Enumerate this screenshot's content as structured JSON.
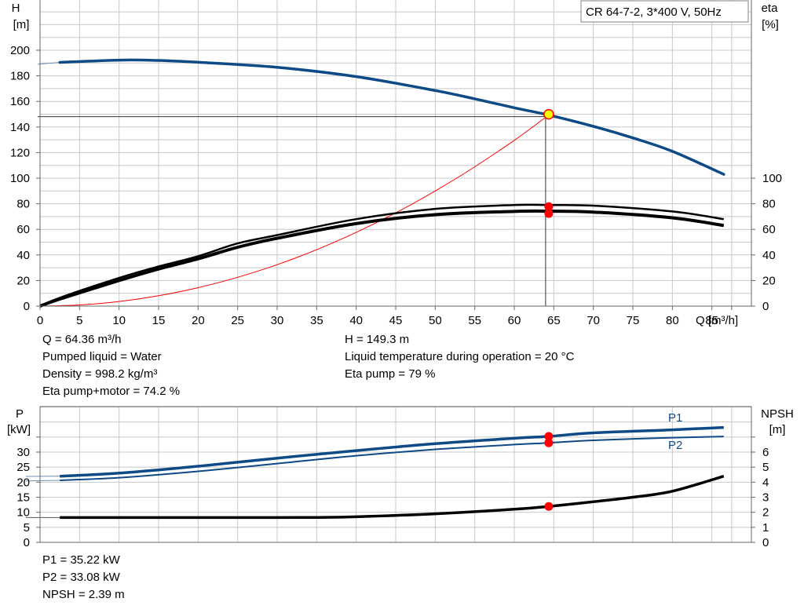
{
  "title_box": "CR 64-7-2, 3*400 V, 50Hz",
  "colors": {
    "blue": "#0d4a86",
    "black": "#000000",
    "red": "#ff0000",
    "duty_point": "#ffff00",
    "grid": "#c8c8c8",
    "frame": "#666666"
  },
  "chart_data": [
    {
      "type": "line",
      "name": "performance",
      "x_axis": {
        "label": "Q [m³/h]",
        "range": [
          0,
          90
        ],
        "ticks": [
          0,
          5,
          10,
          15,
          20,
          25,
          30,
          35,
          40,
          45,
          50,
          55,
          60,
          65,
          70,
          75,
          80,
          85
        ]
      },
      "y_axis_left": {
        "label_1": "H",
        "label_2": "[m]",
        "range": [
          0,
          200
        ],
        "ticks": [
          0,
          20,
          40,
          60,
          80,
          100,
          120,
          140,
          160,
          180,
          200
        ]
      },
      "y_axis_right": {
        "label_1": "eta",
        "label_2": "[%]",
        "ticks": [
          0,
          20,
          40,
          60,
          80,
          100
        ]
      },
      "grid": true,
      "series": [
        {
          "role": "head",
          "color": "#0d4a86",
          "axis": "H",
          "points": [
            [
              0,
              189
            ],
            [
              2.5,
              190.5
            ],
            [
              10,
              192.3
            ],
            [
              15,
              192
            ],
            [
              20,
              190.6
            ],
            [
              30,
              186.6
            ],
            [
              40,
              179.4
            ],
            [
              50,
              168.5
            ],
            [
              55,
              162
            ],
            [
              60,
              155
            ],
            [
              64.36,
              149.3
            ],
            [
              70,
              140.5
            ],
            [
              75,
              131.5
            ],
            [
              80,
              121
            ],
            [
              86.5,
              103
            ]
          ]
        },
        {
          "role": "eta_pump",
          "color": "#000000",
          "axis": "eta",
          "points": [
            [
              0,
              0
            ],
            [
              2.5,
              6.5
            ],
            [
              10,
              22
            ],
            [
              15,
              31
            ],
            [
              20,
              39
            ],
            [
              25,
              49
            ],
            [
              30,
              55.5
            ],
            [
              40,
              68
            ],
            [
              50,
              76
            ],
            [
              60,
              79
            ],
            [
              64.36,
              79
            ],
            [
              70,
              78.5
            ],
            [
              80,
              74
            ],
            [
              86.5,
              68
            ]
          ]
        },
        {
          "role": "eta_pump_motor",
          "color": "#000000",
          "axis": "eta",
          "points": [
            [
              0,
              0
            ],
            [
              2.5,
              5.5
            ],
            [
              10,
              20
            ],
            [
              15,
              29
            ],
            [
              20,
              37
            ],
            [
              25,
              46
            ],
            [
              30,
              53
            ],
            [
              40,
              64.5
            ],
            [
              50,
              71.5
            ],
            [
              60,
              74
            ],
            [
              64.36,
              74.2
            ],
            [
              70,
              73.5
            ],
            [
              80,
              69
            ],
            [
              86.5,
              63
            ]
          ]
        },
        {
          "role": "system_curve",
          "color": "#ff0000",
          "axis": "H",
          "points": [
            [
              0,
              0
            ],
            [
              5,
              0.9
            ],
            [
              10,
              3.6
            ],
            [
              15,
              8.1
            ],
            [
              20,
              14.4
            ],
            [
              25,
              22.5
            ],
            [
              30,
              32.4
            ],
            [
              35,
              44.1
            ],
            [
              40,
              57.6
            ],
            [
              45,
              72.9
            ],
            [
              50,
              90
            ],
            [
              55,
              108.9
            ],
            [
              60,
              129.6
            ],
            [
              64.36,
              149.3
            ]
          ]
        }
      ],
      "duty_point": {
        "q": 64.36,
        "h": 149.3,
        "eta_pump": 79,
        "eta_pump_motor": 74.2
      }
    },
    {
      "type": "line",
      "name": "power_npsh",
      "x_axis": {
        "range": [
          0,
          90
        ]
      },
      "y_axis_left": {
        "label_1": "P",
        "label_2": "[kW]",
        "range": [
          0,
          40
        ],
        "ticks": [
          0,
          5,
          10,
          15,
          20,
          25,
          30
        ]
      },
      "y_axis_right": {
        "label_1": "NPSH",
        "label_2": "[m]",
        "range": [
          0,
          8
        ],
        "ticks": [
          0,
          1,
          2,
          3,
          4,
          5,
          6
        ]
      },
      "grid": true,
      "series": [
        {
          "name": "P1",
          "color": "#0d4a86",
          "axis": "P",
          "points": [
            [
              0,
              22
            ],
            [
              2.5,
              22
            ],
            [
              10,
              23
            ],
            [
              20,
              25.3
            ],
            [
              30,
              28
            ],
            [
              40,
              30.5
            ],
            [
              50,
              32.8
            ],
            [
              60,
              34.6
            ],
            [
              64.36,
              35.22
            ],
            [
              70,
              36.4
            ],
            [
              80,
              37.4
            ],
            [
              86.5,
              38.2
            ]
          ]
        },
        {
          "name": "P2",
          "color": "#0d4a86",
          "axis": "P",
          "points": [
            [
              0,
              20.5
            ],
            [
              2.5,
              20.6
            ],
            [
              10,
              21.5
            ],
            [
              20,
              23.6
            ],
            [
              30,
              26.2
            ],
            [
              40,
              28.8
            ],
            [
              50,
              30.9
            ],
            [
              60,
              32.5
            ],
            [
              64.36,
              33.08
            ],
            [
              70,
              33.9
            ],
            [
              80,
              34.8
            ],
            [
              86.5,
              35.2
            ]
          ]
        },
        {
          "role": "npsh",
          "color": "#000000",
          "axis": "NPSH",
          "points": [
            [
              0,
              1.65
            ],
            [
              2.5,
              1.65
            ],
            [
              10,
              1.65
            ],
            [
              20,
              1.65
            ],
            [
              30,
              1.65
            ],
            [
              35,
              1.66
            ],
            [
              40,
              1.7
            ],
            [
              50,
              1.9
            ],
            [
              60,
              2.2
            ],
            [
              64.36,
              2.39
            ],
            [
              70,
              2.7
            ],
            [
              75,
              3
            ],
            [
              80,
              3.4
            ],
            [
              86.5,
              4.4
            ]
          ]
        }
      ],
      "duty_point": {
        "q": 64.36,
        "p1": 35.22,
        "p2": 33.08,
        "npsh": 2.39
      }
    }
  ],
  "info_top_left": [
    "Q = 64.36 m³/h",
    "Pumped liquid = Water",
    "Density = 998.2 kg/m³",
    "Eta pump+motor = 74.2 %"
  ],
  "info_top_right": [
    "H = 149.3 m",
    "Liquid temperature during operation = 20 °C",
    "Eta pump = 79 %"
  ],
  "info_bottom": [
    "P1 = 35.22 kW",
    "P2 = 33.08 kW",
    "NPSH = 2.39 m"
  ]
}
